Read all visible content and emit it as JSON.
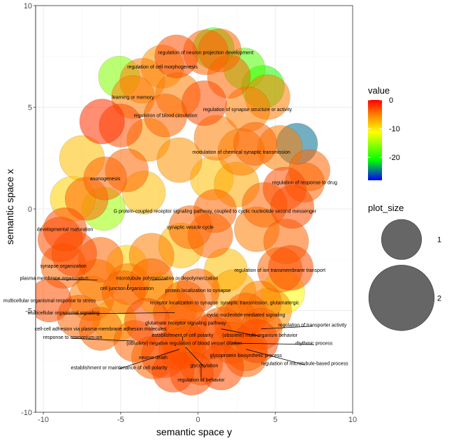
{
  "chart_data": {
    "type": "scatter",
    "xlabel": "semantic space y",
    "ylabel": "semantic space x",
    "xlim": [
      -10.5,
      10
    ],
    "ylim": [
      -10,
      10
    ],
    "xticks": [
      -10,
      -5,
      0,
      5,
      10
    ],
    "yticks": [
      -10,
      -5,
      0,
      5,
      10
    ],
    "xtick_labels": [
      "-10",
      "-5",
      "0",
      "5",
      "10"
    ],
    "ytick_labels": [
      "-10",
      "-5",
      "0",
      "5",
      "10"
    ],
    "grid": true,
    "legend_color": {
      "title": "value",
      "ticks": [
        0,
        -10,
        -20
      ],
      "tick_labels": [
        "0",
        "-10",
        "-20"
      ],
      "range": [
        -28,
        0
      ],
      "colors": [
        "#0000ff",
        "#00ff00",
        "#ffff00",
        "#ff7f00",
        "#ff0000"
      ]
    },
    "legend_size": {
      "title": "plot_size",
      "entries": [
        {
          "label": "1",
          "size": 1
        },
        {
          "label": "2",
          "size": 2
        }
      ]
    },
    "labeled_points": [
      {
        "label": "regulation of neuron projection development",
        "x": 0.5,
        "y": 7.7,
        "value": -4,
        "size": 1.9,
        "lx": 0.5,
        "ly": 7.7
      },
      {
        "label": "regulation of cell morphogenesis",
        "x": -2.3,
        "y": 7.0,
        "value": -6,
        "size": 1.8,
        "lx": -2.3,
        "ly": 7.0
      },
      {
        "label": "learning or memory",
        "x": -4.2,
        "y": 5.5,
        "value": -5,
        "size": 1.8,
        "lx": -4.2,
        "ly": 5.5
      },
      {
        "label": "regulation of blood circulation",
        "x": -2.1,
        "y": 4.6,
        "value": -4,
        "size": 1.8,
        "lx": -2.1,
        "ly": 4.6
      },
      {
        "label": "regulation of synapse structure or activity",
        "x": 3.2,
        "y": 4.9,
        "value": -5,
        "size": 1.9,
        "lx": 3.2,
        "ly": 4.9
      },
      {
        "label": "modulation of chemical synaptic transmission",
        "x": 2.8,
        "y": 2.8,
        "value": -5,
        "size": 2.0,
        "lx": 2.8,
        "ly": 2.8
      },
      {
        "label": "axonogenesis",
        "x": -6.0,
        "y": 1.5,
        "value": -4,
        "size": 1.8,
        "lx": -6.0,
        "ly": 1.5
      },
      {
        "label": "regulation of response to drug",
        "x": 6.9,
        "y": 1.3,
        "value": -4,
        "size": 1.6,
        "lx": 6.9,
        "ly": 1.3
      },
      {
        "label": "G protein-coupled receptor signaling pathway, coupled to cyclic nucleotide second messenger",
        "x": 1.1,
        "y": -0.1,
        "value": -4,
        "size": 1.8,
        "lx": 1.1,
        "ly": -0.1
      },
      {
        "label": "developmental maturation",
        "x": -8.6,
        "y": -1.0,
        "value": -3,
        "size": 1.8,
        "lx": -8.6,
        "ly": -1.0
      },
      {
        "label": "synaptic vesicle cycle",
        "x": -0.5,
        "y": -0.9,
        "value": -4,
        "size": 1.8,
        "lx": -0.5,
        "ly": -0.9
      },
      {
        "label": "synapse organization",
        "x": -8.7,
        "y": -2.8,
        "value": -4,
        "size": 1.9,
        "lx": -8.7,
        "ly": -2.8
      },
      {
        "label": "regulation of ion transmembrane transport",
        "x": 5.3,
        "y": -3.0,
        "value": -4,
        "size": 1.9,
        "lx": 5.3,
        "ly": -3.0
      },
      {
        "label": "plasma membrane organization",
        "x": -6.5,
        "y": -3.5,
        "value": -5,
        "size": 1.7,
        "lx": -9.3,
        "ly": -3.4
      },
      {
        "label": "microtubule polymerization or depolymerization",
        "x": -3.0,
        "y": -3.5,
        "value": -4,
        "size": 1.8,
        "lx": -2.0,
        "ly": -3.4
      },
      {
        "label": "cell junction organization",
        "x": -4.5,
        "y": -3.7,
        "value": -5,
        "size": 1.7,
        "lx": -4.6,
        "ly": -3.9
      },
      {
        "label": "protein localization to synapse",
        "x": 0,
        "y": -4.0,
        "value": -4,
        "size": 1.8,
        "lx": 0,
        "ly": -4.0
      },
      {
        "label": "multicellular organismal response to stress",
        "x": -9.6,
        "y": -4.5,
        "value": -3,
        "size": 1.8,
        "lx": -9.6,
        "ly": -4.5
      },
      {
        "label": "receptor localization to synapse",
        "x": -0.9,
        "y": -4.6,
        "value": -4,
        "size": 1.8,
        "lx": -0.9,
        "ly": -4.6
      },
      {
        "label": "synaptic transmission, glutamatergic",
        "x": 4.0,
        "y": -4.6,
        "value": -5,
        "size": 1.8,
        "lx": 4.0,
        "ly": -4.6
      },
      {
        "label": "multicellular organismal signaling",
        "x": -1.5,
        "y": -5.1,
        "value": -4,
        "size": 1.8,
        "lx": -8.7,
        "ly": -5.1
      },
      {
        "label": "cyclic-nucleotide-mediated signaling",
        "x": 3.1,
        "y": -5.2,
        "value": -4,
        "size": 1.8,
        "lx": 3.1,
        "ly": -5.2
      },
      {
        "label": "glutamate receptor signaling pathway",
        "x": -0.8,
        "y": -5.6,
        "value": -4,
        "size": 1.8,
        "lx": -0.8,
        "ly": -5.6
      },
      {
        "label": "regulation of transporter activity",
        "x": 4.1,
        "y": -5.9,
        "value": -4,
        "size": 1.7,
        "lx": 7.4,
        "ly": -5.7
      },
      {
        "label": "cell-cell adhesion via plasma-membrane adhesion molecules",
        "x": -6.3,
        "y": -5.9,
        "value": -4,
        "size": 1.8,
        "lx": -6.3,
        "ly": -5.9
      },
      {
        "label": "establishment of cell polarity",
        "x": -1.0,
        "y": -6.5,
        "value": -4,
        "size": 1.8,
        "lx": -1.0,
        "ly": -6.2
      },
      {
        "label": "(obsolete) multi-organism behavior",
        "x": 1.5,
        "y": -5.9,
        "value": -4,
        "size": 1.8,
        "lx": 4.0,
        "ly": -6.2
      },
      {
        "label": "response to ammonium ion",
        "x": -4.1,
        "y": -6.5,
        "value": -4,
        "size": 1.7,
        "lx": -8.1,
        "ly": -6.3
      },
      {
        "label": "(obsolete) negative regulation of blood vessel dilation",
        "x": -0.9,
        "y": -6.6,
        "value": -4,
        "size": 1.8,
        "lx": -0.9,
        "ly": -6.6
      },
      {
        "label": "rhythmic process",
        "x": 2.2,
        "y": -6.6,
        "value": -4,
        "size": 1.7,
        "lx": 7.5,
        "ly": -6.6
      },
      {
        "label": "glycoprotein biosynthetic process",
        "x": 3.1,
        "y": -7.2,
        "value": -4,
        "size": 1.8,
        "lx": 3.1,
        "ly": -7.2
      },
      {
        "label": "neuron death",
        "x": -2.9,
        "y": -7.3,
        "value": -4,
        "size": 1.8,
        "lx": -2.9,
        "ly": -7.3
      },
      {
        "label": "regulation of microtubule-based process",
        "x": 3.1,
        "y": -6.9,
        "value": -4,
        "size": 1.8,
        "lx": 6.9,
        "ly": -7.6
      },
      {
        "label": "glycosylation",
        "x": -0.8,
        "y": -6.8,
        "value": -4,
        "size": 1.7,
        "lx": 0.4,
        "ly": -7.7
      },
      {
        "label": "establishment or maintenance of cell polarity",
        "x": -1.2,
        "y": -6.9,
        "value": -4,
        "size": 1.7,
        "lx": -5.1,
        "ly": -7.8
      },
      {
        "label": "regulation of behavior",
        "x": 0.2,
        "y": -7.6,
        "value": -4,
        "size": 1.8,
        "lx": 0.2,
        "ly": -8.4
      }
    ],
    "unlabeled_points": [
      {
        "x": -6.2,
        "y": 4.3,
        "value": -2,
        "size": 1.9
      },
      {
        "x": -5.0,
        "y": 4.1,
        "value": -3,
        "size": 1.8
      },
      {
        "x": -3.6,
        "y": 6.3,
        "value": -5,
        "size": 1.9
      },
      {
        "x": -5.1,
        "y": 6.5,
        "value": -16,
        "size": 1.7
      },
      {
        "x": -1.4,
        "y": 7.5,
        "value": -3,
        "size": 1.8
      },
      {
        "x": 1.0,
        "y": 7.9,
        "value": -19,
        "size": 1.7
      },
      {
        "x": 1.4,
        "y": 7.8,
        "value": -4,
        "size": 1.8
      },
      {
        "x": 3.0,
        "y": 6.9,
        "value": -18,
        "size": 1.7
      },
      {
        "x": 4.2,
        "y": 6.0,
        "value": -20,
        "size": 1.8
      },
      {
        "x": 4.5,
        "y": 5.5,
        "value": -5,
        "size": 1.9
      },
      {
        "x": 2.0,
        "y": 6.5,
        "value": -4,
        "size": 1.8
      },
      {
        "x": 0.4,
        "y": 5.2,
        "value": -3,
        "size": 1.9
      },
      {
        "x": -1.3,
        "y": 5.6,
        "value": -5,
        "size": 1.9
      },
      {
        "x": -3.2,
        "y": 3.4,
        "value": -6,
        "size": 1.8
      },
      {
        "x": -1.2,
        "y": 2.4,
        "value": -6,
        "size": 1.9
      },
      {
        "x": 1.2,
        "y": 3.5,
        "value": -5,
        "size": 1.9
      },
      {
        "x": 3.7,
        "y": 3.2,
        "value": -4,
        "size": 1.8
      },
      {
        "x": 5.3,
        "y": 3.0,
        "value": -5,
        "size": 1.9
      },
      {
        "x": 6.4,
        "y": 3.2,
        "value": -25,
        "size": 1.7
      },
      {
        "x": 7.2,
        "y": 1.9,
        "value": -4,
        "size": 1.7
      },
      {
        "x": 5.6,
        "y": 1.0,
        "value": -3,
        "size": 1.8
      },
      {
        "x": 6.1,
        "y": 0.1,
        "value": -3,
        "size": 1.8
      },
      {
        "x": 4.3,
        "y": 0.2,
        "value": -4,
        "size": 1.9
      },
      {
        "x": 2.5,
        "y": 1.2,
        "value": -7,
        "size": 1.9
      },
      {
        "x": 0.9,
        "y": 1.5,
        "value": -8,
        "size": 1.8
      },
      {
        "x": -7.5,
        "y": 2.5,
        "value": -8,
        "size": 1.9
      },
      {
        "x": -8.1,
        "y": 0.5,
        "value": -9,
        "size": 1.9
      },
      {
        "x": -7.2,
        "y": 0.5,
        "value": -4,
        "size": 1.8
      },
      {
        "x": -6.1,
        "y": 0.0,
        "value": -15,
        "size": 1.8
      },
      {
        "x": -4.6,
        "y": 1.9,
        "value": -4,
        "size": 1.8
      },
      {
        "x": -3.5,
        "y": 0.8,
        "value": -8,
        "size": 1.8
      },
      {
        "x": -8.9,
        "y": -1.5,
        "value": -3,
        "size": 1.9
      },
      {
        "x": -8.0,
        "y": -2.2,
        "value": -3,
        "size": 1.9
      },
      {
        "x": -6.3,
        "y": -2.5,
        "value": -4,
        "size": 1.9
      },
      {
        "x": -4.6,
        "y": -2.8,
        "value": -9,
        "size": 1.7
      },
      {
        "x": -3.0,
        "y": -2.3,
        "value": -5,
        "size": 1.9
      },
      {
        "x": -1.1,
        "y": -1.8,
        "value": -8,
        "size": 1.9
      },
      {
        "x": 0.8,
        "y": -1.3,
        "value": -4,
        "size": 1.9
      },
      {
        "x": 1.8,
        "y": -3.0,
        "value": -8,
        "size": 1.8
      },
      {
        "x": 3.8,
        "y": -1.0,
        "value": -5,
        "size": 1.9
      },
      {
        "x": 5.7,
        "y": -1.6,
        "value": -4,
        "size": 1.9
      },
      {
        "x": 6.0,
        "y": -2.9,
        "value": -3,
        "size": 1.9
      },
      {
        "x": 5.5,
        "y": -4.1,
        "value": -11,
        "size": 1.8
      },
      {
        "x": 4.6,
        "y": -5.0,
        "value": -6,
        "size": 1.9
      },
      {
        "x": 2.3,
        "y": -4.1,
        "value": -7,
        "size": 1.9
      },
      {
        "x": -2.5,
        "y": -4.2,
        "value": -10,
        "size": 1.8
      },
      {
        "x": -4.8,
        "y": -4.1,
        "value": -4,
        "size": 1.8
      },
      {
        "x": -6.9,
        "y": -4.4,
        "value": -5,
        "size": 1.9
      },
      {
        "x": -7.7,
        "y": -5.3,
        "value": -4,
        "size": 1.8
      },
      {
        "x": -5.4,
        "y": -5.5,
        "value": -9,
        "size": 1.8
      },
      {
        "x": -3.3,
        "y": -5.5,
        "value": -3,
        "size": 1.9
      },
      {
        "x": -2.2,
        "y": -7.2,
        "value": -3,
        "size": 1.9
      },
      {
        "x": 0.8,
        "y": -6.3,
        "value": -3,
        "size": 1.9
      },
      {
        "x": 2.5,
        "y": -5.6,
        "value": -4,
        "size": 1.9
      },
      {
        "x": 1.5,
        "y": -7.8,
        "value": -3,
        "size": 1.9
      },
      {
        "x": -0.4,
        "y": -8.1,
        "value": -3,
        "size": 1.8
      },
      {
        "x": -1.6,
        "y": -8.0,
        "value": -3,
        "size": 1.7
      },
      {
        "x": 3.8,
        "y": -6.5,
        "value": -3,
        "size": 1.8
      }
    ]
  }
}
